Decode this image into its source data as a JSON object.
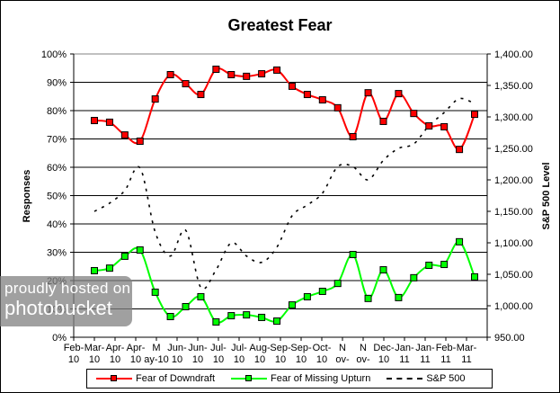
{
  "chart_data": {
    "type": "line",
    "title": "Greatest Fear",
    "xlabel": "",
    "ylabel": "Responses",
    "y2label": "S&P 500 Level",
    "ylim": [
      0,
      100
    ],
    "y2lim": [
      950,
      1400
    ],
    "y_ticks": [
      "0%",
      "10%",
      "20%",
      "30%",
      "40%",
      "50%",
      "60%",
      "70%",
      "80%",
      "90%",
      "100%"
    ],
    "y2_ticks": [
      "950.00",
      "1,000.00",
      "1,050.00",
      "1,100.00",
      "1,150.00",
      "1,200.00",
      "1,250.00",
      "1,300.00",
      "1,350.00",
      "1,400.00"
    ],
    "x_tick_labels": [
      [
        "Feb-",
        "10"
      ],
      [
        "Mar-",
        "10"
      ],
      [
        "Apr-",
        "10"
      ],
      [
        "Apr-",
        "10"
      ],
      [
        "M",
        "ay-10"
      ],
      [
        "Jun-",
        "10"
      ],
      [
        "Jun-",
        "10"
      ],
      [
        "Jul-",
        "10"
      ],
      [
        "Jul-",
        "10"
      ],
      [
        "Aug-",
        "10"
      ],
      [
        "Sep-",
        "10"
      ],
      [
        "Sep-",
        "10"
      ],
      [
        "Oct-",
        "10"
      ],
      [
        "N",
        "ov-"
      ],
      [
        "N",
        "ov-"
      ],
      [
        "Dec-",
        "10"
      ],
      [
        "Jan-",
        "11"
      ],
      [
        "Jan-",
        "11"
      ],
      [
        "Feb-",
        "11"
      ],
      [
        "Mar-",
        "11"
      ]
    ],
    "grid": true,
    "legend_position": "bottom",
    "series": [
      {
        "name": "Fear of Downdraft",
        "axis": "left",
        "color": "#ff0000",
        "marker": "square",
        "values": [
          76.5,
          75.9,
          71.4,
          69.2,
          84.1,
          92.7,
          89.5,
          85.7,
          94.6,
          92.7,
          92.1,
          93.0,
          94.3,
          88.6,
          85.7,
          83.8,
          81.0,
          70.8,
          86.3,
          76.2,
          86.0,
          79.0,
          74.6,
          74.3,
          66.3,
          78.7
        ]
      },
      {
        "name": "Fear of Missing Upturn",
        "axis": "left",
        "color": "#00ff00",
        "marker": "square",
        "values": [
          23.5,
          24.4,
          28.6,
          30.8,
          15.9,
          7.3,
          10.8,
          14.3,
          5.4,
          7.6,
          7.9,
          7.0,
          5.7,
          11.4,
          14.3,
          16.2,
          19.0,
          29.2,
          13.7,
          23.8,
          14.0,
          21.0,
          25.4,
          25.7,
          33.7,
          21.3
        ]
      },
      {
        "name": "S&P 500",
        "axis": "right",
        "color": "#000000",
        "style": "dashed",
        "values": [
          1150,
          1163,
          1183,
          1219,
          1117,
          1079,
          1120,
          1029,
          1057,
          1100,
          1079,
          1069,
          1093,
          1143,
          1160,
          1179,
          1221,
          1221,
          1200,
          1231,
          1250,
          1257,
          1286,
          1307,
          1329,
          1321
        ]
      }
    ]
  },
  "watermark": {
    "line1": "proudly hosted on",
    "line2": "photobucket"
  }
}
